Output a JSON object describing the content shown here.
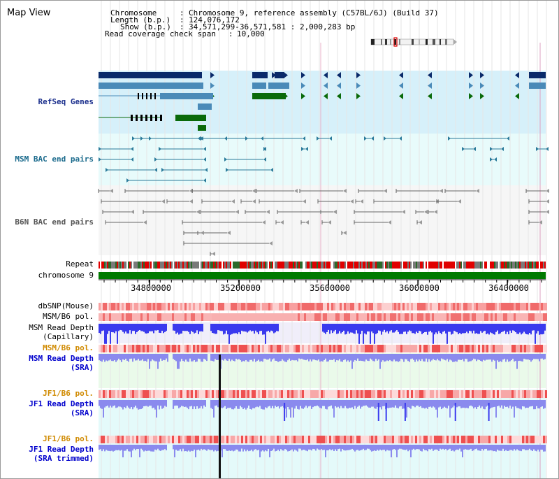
{
  "view_title": "Map View",
  "info": {
    "chromosome_label": "Chromosome",
    "chromosome_value": "Chromosome 9, reference assembly (C57BL/6J) (Build 37)",
    "length_label": "Length (b.p.)",
    "length_value": "124,076,172",
    "show_label": "Show (b.p.)",
    "show_value": "34,571,299-36,571,581 : 2,000,283 bp",
    "coverage_label": "Read coverage check span",
    "coverage_value": "10,000"
  },
  "tracks": {
    "refseq": "RefSeq Genes",
    "msm_bac": "MSM BAC end pairs",
    "b6n_bac": "B6N BAC end pairs",
    "repeat": "Repeat",
    "chromosome": "chromosome 9",
    "dbsnp": "dbSNP(Mouse)",
    "msm_b6_pol_1": "MSM/B6 pol.",
    "msm_depth_cap_1": "MSM Read Depth",
    "msm_depth_cap_2": "(Capillary)",
    "msm_b6_pol_2": "MSM/B6 pol.",
    "msm_depth_sra_1": "MSM Read Depth",
    "msm_depth_sra_2": "(SRA)",
    "jf1_b6_pol_1": "JF1/B6 pol.",
    "jf1_depth_sra_1": "JF1 Read Depth",
    "jf1_depth_sra_2": "(SRA)",
    "jf1_b6_pol_2": "JF1/B6 pol.",
    "jf1_depth_trim_1": "JF1 Read Depth",
    "jf1_depth_trim_2": "(SRA trimmed)"
  },
  "axis": {
    "ticks": [
      "34800000",
      "35200000",
      "35600000",
      "36000000",
      "36400000"
    ],
    "tick_values": [
      34800000,
      35200000,
      35600000,
      36000000,
      36400000
    ],
    "range": [
      34571299,
      36571581
    ]
  },
  "colors": {
    "refseq_bg": "#d6f0fa",
    "bac_bg": "#e8fbfb",
    "navy": "#0a2a6a",
    "steel": "#4a8ab8",
    "green": "#0a6a0a",
    "chrom": "#007a00",
    "depth_dark": "#3a3aee",
    "depth_light": "#8a8aee"
  }
}
